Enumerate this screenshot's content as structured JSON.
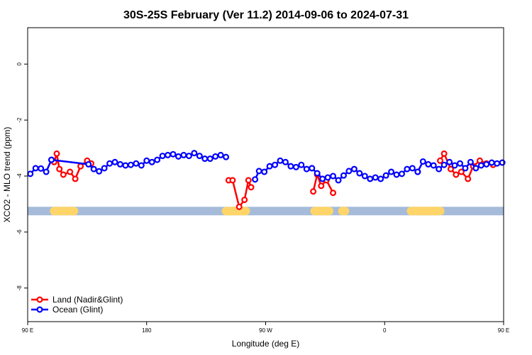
{
  "chart_data": {
    "type": "line",
    "title": "30S-25S February (Ver 11.2)   2014-09-06 to 2024-07-31",
    "xlabel": "Longitude (deg E)",
    "ylabel": "XCO2 - MLO trend (ppm)",
    "xlim": [
      90,
      450
    ],
    "ylim": [
      -9.2,
      1.3
    ],
    "xticks": [
      90,
      180,
      270,
      360,
      450,
      540
    ],
    "xtick_labels": [
      "90 E",
      "180",
      "90 W",
      "0",
      "90 E",
      "180"
    ],
    "yticks": [
      0,
      -2,
      -4,
      -6,
      -8
    ],
    "yticks_display": [
      "0",
      "-2",
      "-4",
      "-6",
      "-8"
    ],
    "grid": false,
    "legend_position": "bottom-left",
    "land_ocean_bar": {
      "y": -5.25,
      "ocean_color": "#A5BBD9",
      "land_color": "#FFD56A",
      "land_ranges": [
        [
          110,
          125
        ],
        [
          240,
          255
        ],
        [
          307,
          318
        ],
        [
          328,
          330
        ],
        [
          380,
          402
        ]
      ]
    },
    "series": [
      {
        "name": "Land (Nadir&Glint)",
        "color": "#FF0000",
        "segments": [
          {
            "x": [
              110,
              112,
              114,
              117,
              122,
              126,
              130,
              135,
              138
            ],
            "y": [
              -3.5,
              -3.2,
              -3.75,
              -3.95,
              -3.85,
              -4.1,
              -3.65,
              -3.45,
              -3.55
            ]
          },
          {
            "x": [
              242,
              245,
              250,
              254,
              257,
              259
            ],
            "y": [
              -4.15,
              -4.15,
              -5.1,
              -4.85,
              -4.15,
              -4.4
            ]
          },
          {
            "x": [
              306,
              309,
              312,
              316,
              321
            ],
            "y": [
              -4.55,
              -3.95,
              -4.35,
              -4.15,
              -4.6
            ]
          },
          {
            "x": [
              402,
              405,
              410,
              414,
              418,
              423,
              427,
              432,
              437,
              442
            ],
            "y": [
              -3.45,
              -3.2,
              -3.75,
              -3.95,
              -3.85,
              -4.1,
              -3.65,
              -3.45,
              -3.55,
              -3.6
            ]
          }
        ]
      },
      {
        "name": "Ocean (Glint)",
        "color": "#0000FF",
        "segments": [
          {
            "x": [
              92,
              96,
              100,
              104,
              108
            ],
            "y": [
              -3.92,
              -3.72,
              -3.73,
              -3.85,
              -3.42
            ]
          },
          {
            "x": [
              108,
              136,
              140,
              144,
              148,
              152,
              156,
              160,
              164,
              168,
              172,
              176,
              180,
              184,
              188,
              192,
              196,
              200,
              204,
              208,
              212,
              216,
              220,
              224,
              228,
              232,
              236,
              240
            ],
            "y": [
              -3.42,
              -3.58,
              -3.75,
              -3.83,
              -3.72,
              -3.55,
              -3.5,
              -3.58,
              -3.62,
              -3.6,
              -3.55,
              -3.62,
              -3.45,
              -3.5,
              -3.42,
              -3.28,
              -3.25,
              -3.22,
              -3.3,
              -3.25,
              -3.28,
              -3.18,
              -3.28,
              -3.38,
              -3.38,
              -3.3,
              -3.25,
              -3.32
            ]
          },
          {
            "x": [
              262,
              265,
              269,
              273,
              277,
              281,
              285,
              289,
              293,
              297,
              301,
              305
            ],
            "y": [
              -4.12,
              -3.82,
              -3.85,
              -3.65,
              -3.6,
              -3.45,
              -3.5,
              -3.65,
              -3.68,
              -3.6,
              -3.75,
              -3.72
            ]
          },
          {
            "x": [
              305,
              309,
              313,
              317,
              321,
              325,
              329,
              333,
              337,
              341,
              345,
              349,
              353,
              357,
              361,
              365,
              369,
              373,
              377,
              381,
              385
            ],
            "y": [
              -3.72,
              -3.9,
              -4.1,
              -4.05,
              -4.0,
              -4.15,
              -3.98,
              -3.82,
              -3.75,
              -3.9,
              -4.0,
              -4.1,
              -4.05,
              -4.1,
              -3.98,
              -3.85,
              -3.95,
              -3.92,
              -3.75,
              -3.72,
              -3.85
            ]
          },
          {
            "x": [
              385,
              389,
              393,
              397,
              401,
              405,
              409,
              413,
              417,
              421,
              425,
              429,
              433,
              437,
              441,
              445,
              449
            ],
            "y": [
              -3.85,
              -3.48,
              -3.58,
              -3.62,
              -3.75,
              -3.6,
              -3.5,
              -3.62,
              -3.55,
              -3.72,
              -3.5,
              -3.72,
              -3.62,
              -3.58,
              -3.52,
              -3.55,
              -3.52
            ]
          }
        ]
      }
    ]
  }
}
